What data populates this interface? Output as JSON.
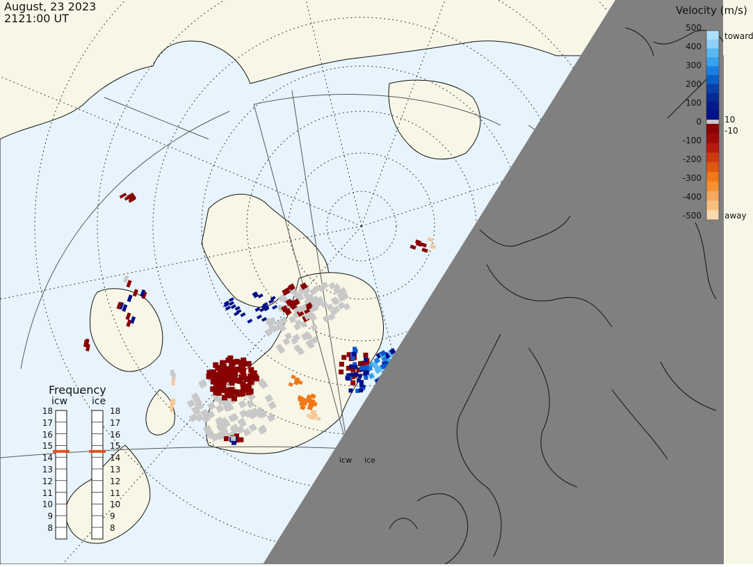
{
  "header": {
    "date": "August, 23 2023",
    "time": "2121:00 UT"
  },
  "legend": {
    "title": "Velocity (m/s)",
    "ticks": [
      "500",
      "400",
      "300",
      "200",
      "100",
      "0",
      "-100",
      "-200",
      "-300",
      "-400",
      "-500"
    ],
    "low_threshold_pos": "10",
    "low_threshold_neg": "-10",
    "toward_label": "toward",
    "away_label": "away"
  },
  "frequency_panel": {
    "title": "Frequency",
    "columns": [
      {
        "label": "icw",
        "marker_mhz": 15
      },
      {
        "label": "ice",
        "marker_mhz": 15
      }
    ],
    "scale": [
      "18",
      "17",
      "16",
      "15",
      "14",
      "13",
      "12",
      "11",
      "10",
      "9",
      "8"
    ]
  },
  "radars": {
    "west_label": "icw",
    "east_label": "ice"
  },
  "colors": {
    "land": "#f8f7e7",
    "ocean": "#e8f4fd",
    "night_shade": "#808080",
    "ground_scatter": "#c8c8c8",
    "frequency_marker": "#e05020",
    "toward_dark": "#00108a",
    "toward_mid": "#0a58d0",
    "toward_light": "#5ab8f0",
    "away_dark": "#880000",
    "away_orange": "#f07818",
    "away_light": "#f8c898"
  }
}
